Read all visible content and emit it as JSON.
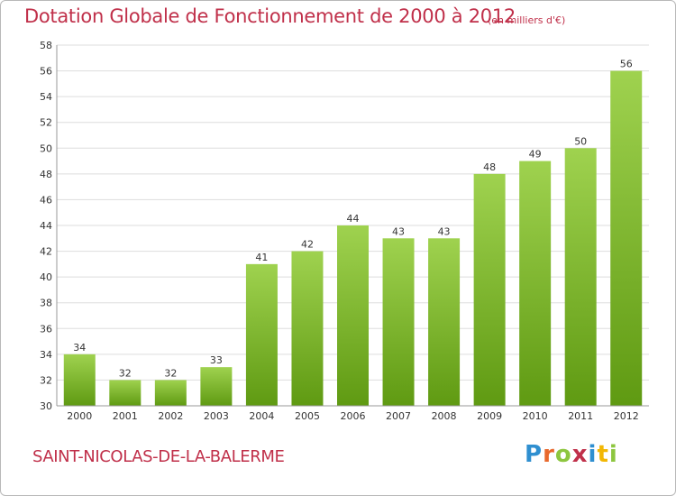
{
  "header": {
    "title": "Dotation Globale de Fonctionnement de 2000 à 2012",
    "subtitle": "(en milliers d'€)"
  },
  "footer": {
    "commune": "SAINT-NICOLAS-DE-LA-BALERME",
    "logo_letters": [
      "P",
      "r",
      "o",
      "x",
      "i",
      "t",
      "i"
    ],
    "logo_colors": [
      "#2f8fd0",
      "#e8692d",
      "#8dc63f",
      "#c0304a",
      "#2f8fd0",
      "#f2b705",
      "#8dc63f"
    ]
  },
  "chart_data": {
    "type": "bar",
    "title": "Dotation Globale de Fonctionnement de 2000 à 2012",
    "subtitle": "(en milliers d'€)",
    "categories": [
      "2000",
      "2001",
      "2002",
      "2003",
      "2004",
      "2005",
      "2006",
      "2007",
      "2008",
      "2009",
      "2010",
      "2011",
      "2012"
    ],
    "values": [
      34,
      32,
      32,
      33,
      41,
      42,
      44,
      43,
      43,
      48,
      49,
      50,
      56
    ],
    "ylim": [
      30,
      58
    ],
    "yticks": [
      30,
      32,
      34,
      36,
      38,
      40,
      42,
      44,
      46,
      48,
      50,
      52,
      54,
      56,
      58
    ],
    "grid": true,
    "colors": {
      "bar_top": "#9fd24f",
      "bar_bottom": "#5f9a12",
      "grid": "#dddddd",
      "axis_text": "#333333"
    }
  }
}
